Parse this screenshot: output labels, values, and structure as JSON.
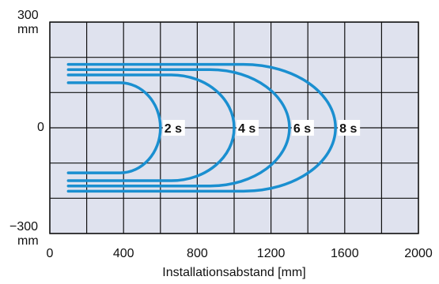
{
  "chart_data": {
    "type": "line",
    "xlabel": "Installationsabstand [mm]",
    "ylabel_top": "300",
    "ylabel_top_unit": "mm",
    "ylabel_mid": "0",
    "ylabel_bottom": "−300",
    "ylabel_bottom_unit": "mm",
    "xlim": [
      0,
      2000
    ],
    "ylim": [
      -300,
      300
    ],
    "x_ticks": [
      "0",
      "400",
      "800",
      "1200",
      "1600",
      "2000"
    ],
    "grid": true,
    "colors": {
      "plot_background": "#dfe2ee",
      "grid": "#111111",
      "curve": "#1a8fd0",
      "label_background": "#ffffff"
    },
    "series": [
      {
        "name": "2 s",
        "tip_x": 600,
        "arm_y": 128,
        "arm_x_start": 100,
        "curve_start_x": 380
      },
      {
        "name": "4 s",
        "tip_x": 1000,
        "arm_y": 150,
        "arm_x_start": 100,
        "curve_start_x": 660
      },
      {
        "name": "6 s",
        "tip_x": 1300,
        "arm_y": 165,
        "arm_x_start": 100,
        "curve_start_x": 870
      },
      {
        "name": "8 s",
        "tip_x": 1550,
        "arm_y": 180,
        "arm_x_start": 100,
        "curve_start_x": 1050
      }
    ]
  }
}
